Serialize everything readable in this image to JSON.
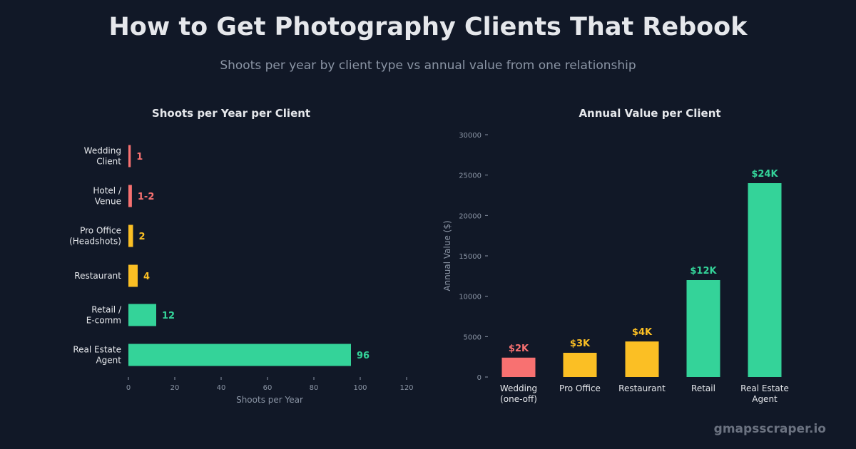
{
  "header": {
    "title": "How to Get Photography Clients That Rebook",
    "subtitle": "Shoots per year by client type vs annual value from one relationship"
  },
  "watermark": "gmapsscraper.io",
  "colors": {
    "background": "#111827",
    "red": "#f87171",
    "yellow": "#fbbf24",
    "green": "#34d399",
    "text": "#e5e7eb",
    "muted": "#8b95a5"
  },
  "chart_data": [
    {
      "type": "bar",
      "orientation": "horizontal",
      "title": "Shoots per Year per Client",
      "xlabel": "Shoots per Year",
      "ylabel": "",
      "xlim": [
        0,
        120
      ],
      "xticks": [
        0,
        20,
        40,
        60,
        80,
        100,
        120
      ],
      "categories": [
        [
          "Wedding",
          "Client"
        ],
        [
          "Hotel /",
          "Venue"
        ],
        [
          "Pro Office",
          "(Headshots)"
        ],
        [
          "Restaurant"
        ],
        [
          "Retail /",
          "E-comm"
        ],
        [
          "Real Estate",
          "Agent"
        ]
      ],
      "values": [
        1,
        1.5,
        2,
        4,
        12,
        96
      ],
      "value_labels": [
        "1",
        "1-2",
        "2",
        "4",
        "12",
        "96"
      ],
      "bar_colors": [
        "#f87171",
        "#f87171",
        "#fbbf24",
        "#fbbf24",
        "#34d399",
        "#34d399"
      ]
    },
    {
      "type": "bar",
      "orientation": "vertical",
      "title": "Annual Value per Client",
      "xlabel": "",
      "ylabel": "Annual Value ($)",
      "ylim": [
        0,
        30000
      ],
      "yticks": [
        0,
        5000,
        10000,
        15000,
        20000,
        25000,
        30000
      ],
      "categories": [
        [
          "Wedding",
          "(one-off)"
        ],
        [
          "Pro Office"
        ],
        [
          "Restaurant"
        ],
        [
          "Retail"
        ],
        [
          "Real Estate",
          "Agent"
        ]
      ],
      "values": [
        2400,
        3000,
        4400,
        12000,
        24000
      ],
      "value_labels": [
        "$2K",
        "$3K",
        "$4K",
        "$12K",
        "$24K"
      ],
      "bar_colors": [
        "#f87171",
        "#fbbf24",
        "#fbbf24",
        "#34d399",
        "#34d399"
      ]
    }
  ]
}
